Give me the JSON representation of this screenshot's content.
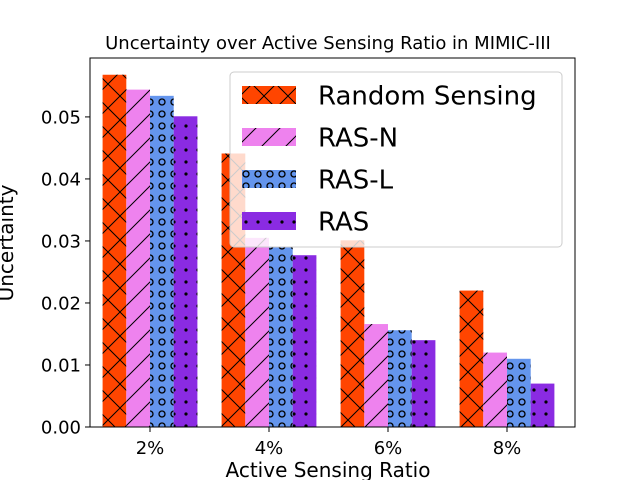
{
  "chart_data": {
    "type": "bar",
    "title": "Uncertainty over Active Sensing Ratio in MIMIC-III",
    "xlabel": "Active Sensing Ratio",
    "ylabel": "Uncertainty",
    "categories": [
      "2%",
      "4%",
      "6%",
      "8%"
    ],
    "ylim": [
      0,
      0.0595
    ],
    "yticks": [
      0.0,
      0.01,
      0.02,
      0.03,
      0.04,
      0.05
    ],
    "ytick_labels": [
      "0.00",
      "0.01",
      "0.02",
      "0.03",
      "0.04",
      "0.05"
    ],
    "legend_position": "top-right",
    "series": [
      {
        "name": "Random Sensing",
        "values": [
          0.0568,
          0.0441,
          0.0301,
          0.022
        ],
        "color": "#ff4500",
        "hatch": "x"
      },
      {
        "name": "RAS-N",
        "values": [
          0.0544,
          0.0305,
          0.0166,
          0.012
        ],
        "color": "#ee82ee",
        "hatch": "/"
      },
      {
        "name": "RAS-L",
        "values": [
          0.0534,
          0.029,
          0.0156,
          0.011
        ],
        "color": "#6495ed",
        "hatch": "o"
      },
      {
        "name": "RAS",
        "values": [
          0.0501,
          0.0277,
          0.014,
          0.007
        ],
        "color": "#8a2be2",
        "hatch": "."
      }
    ]
  }
}
